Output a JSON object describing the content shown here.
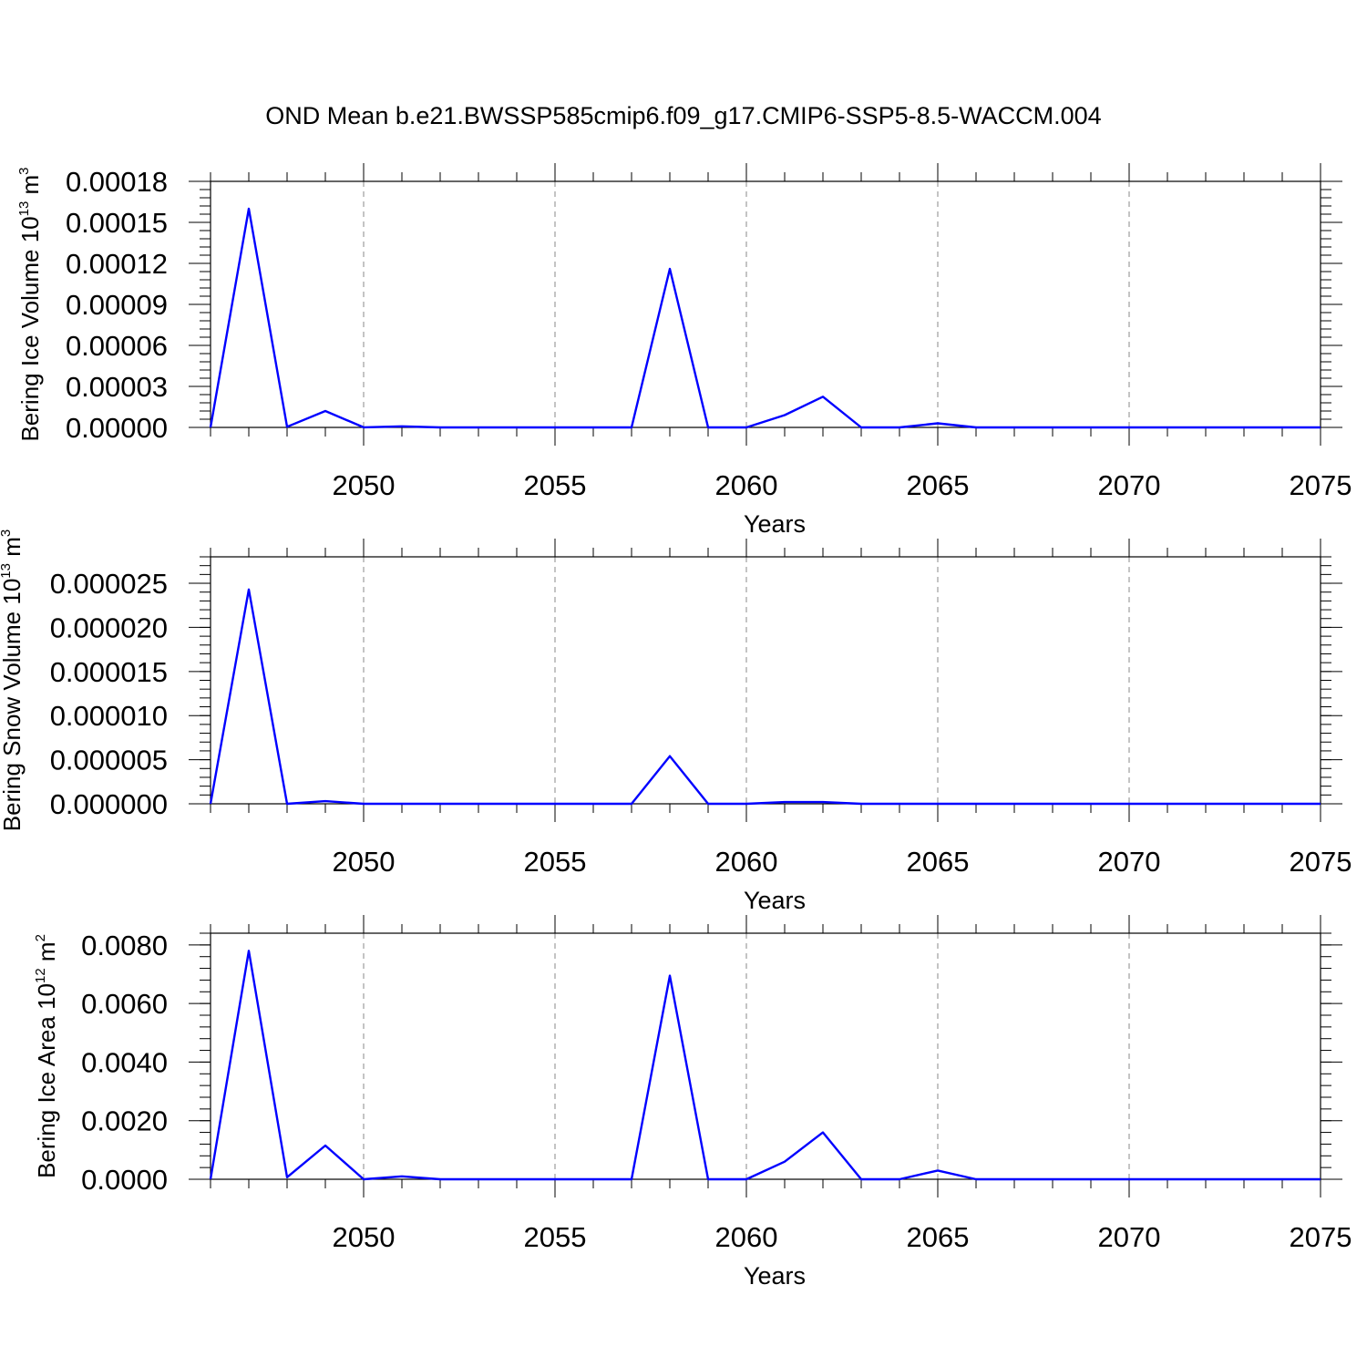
{
  "figure": {
    "title": "OND Mean b.e21.BWSSP585cmip6.f09_g17.CMIP6-SSP5-8.5-WACCM.004"
  },
  "chart_data": [
    {
      "type": "line",
      "ylabel": {
        "main": "Bering Ice Volume 10",
        "sup": "13",
        "unit": " m",
        "unit_sup": "3"
      },
      "xlabel": "Years",
      "xlim": [
        2046,
        2075
      ],
      "ylim": [
        0,
        0.00018
      ],
      "xticks": [
        2050,
        2055,
        2060,
        2065,
        2070,
        2075
      ],
      "yticks": [
        "0.00000",
        "0.00003",
        "0.00006",
        "0.00009",
        "0.00012",
        "0.00015",
        "0.00018"
      ],
      "grid": "vertical-dashed",
      "line_color": "#0000ff",
      "x": [
        2046,
        2047,
        2048,
        2049,
        2050,
        2051,
        2052,
        2053,
        2054,
        2055,
        2056,
        2057,
        2058,
        2059,
        2060,
        2061,
        2062,
        2063,
        2064,
        2065,
        2066,
        2067,
        2068,
        2069,
        2070,
        2071,
        2072,
        2073,
        2074,
        2075
      ],
      "y": [
        0.0,
        0.00016,
        5e-07,
        1.2e-05,
        1e-07,
        8e-07,
        0.0,
        0.0,
        0.0,
        0.0,
        0.0,
        0.0,
        0.000116,
        0.0,
        0.0,
        9e-06,
        2.25e-05,
        0.0,
        0.0,
        3e-06,
        0.0,
        0.0,
        0.0,
        0.0,
        0.0,
        0.0,
        0.0,
        0.0,
        0.0,
        0.0
      ]
    },
    {
      "type": "line",
      "ylabel": {
        "main": "Bering Snow Volume 10",
        "sup": "13",
        "unit": " m",
        "unit_sup": "3"
      },
      "xlabel": "Years",
      "xlim": [
        2046,
        2075
      ],
      "ylim": [
        0,
        2.8e-05
      ],
      "xticks": [
        2050,
        2055,
        2060,
        2065,
        2070,
        2075
      ],
      "yticks": [
        "0.000000",
        "0.000005",
        "0.000010",
        "0.000015",
        "0.000020",
        "0.000025"
      ],
      "grid": "vertical-dashed",
      "line_color": "#0000ff",
      "x": [
        2046,
        2047,
        2048,
        2049,
        2050,
        2051,
        2052,
        2053,
        2054,
        2055,
        2056,
        2057,
        2058,
        2059,
        2060,
        2061,
        2062,
        2063,
        2064,
        2065,
        2066,
        2067,
        2068,
        2069,
        2070,
        2071,
        2072,
        2073,
        2074,
        2075
      ],
      "y": [
        0.0,
        2.43e-05,
        0.0,
        3e-07,
        0.0,
        0.0,
        0.0,
        0.0,
        0.0,
        0.0,
        0.0,
        0.0,
        5.4e-06,
        0.0,
        0.0,
        2e-07,
        2e-07,
        0.0,
        0.0,
        0.0,
        0.0,
        0.0,
        0.0,
        0.0,
        0.0,
        0.0,
        0.0,
        0.0,
        0.0,
        0.0
      ]
    },
    {
      "type": "line",
      "ylabel": {
        "main": "Bering Ice Area 10",
        "sup": "12",
        "unit": " m",
        "unit_sup": "2"
      },
      "xlabel": "Years",
      "xlim": [
        2046,
        2075
      ],
      "ylim": [
        0,
        0.0084
      ],
      "xticks": [
        2050,
        2055,
        2060,
        2065,
        2070,
        2075
      ],
      "yticks": [
        "0.0000",
        "0.0020",
        "0.0040",
        "0.0060",
        "0.0080"
      ],
      "grid": "vertical-dashed",
      "line_color": "#0000ff",
      "x": [
        2046,
        2047,
        2048,
        2049,
        2050,
        2051,
        2052,
        2053,
        2054,
        2055,
        2056,
        2057,
        2058,
        2059,
        2060,
        2061,
        2062,
        2063,
        2064,
        2065,
        2066,
        2067,
        2068,
        2069,
        2070,
        2071,
        2072,
        2073,
        2074,
        2075
      ],
      "y": [
        0.0,
        0.0078,
        7e-05,
        0.00115,
        0.0,
        0.0001,
        0.0,
        0.0,
        0.0,
        0.0,
        0.0,
        0.0,
        0.00695,
        0.0,
        0.0,
        0.0006,
        0.0016,
        0.0,
        0.0,
        0.0003,
        0.0,
        0.0,
        0.0,
        0.0,
        0.0,
        0.0,
        0.0,
        0.0,
        0.0,
        0.0
      ]
    }
  ]
}
